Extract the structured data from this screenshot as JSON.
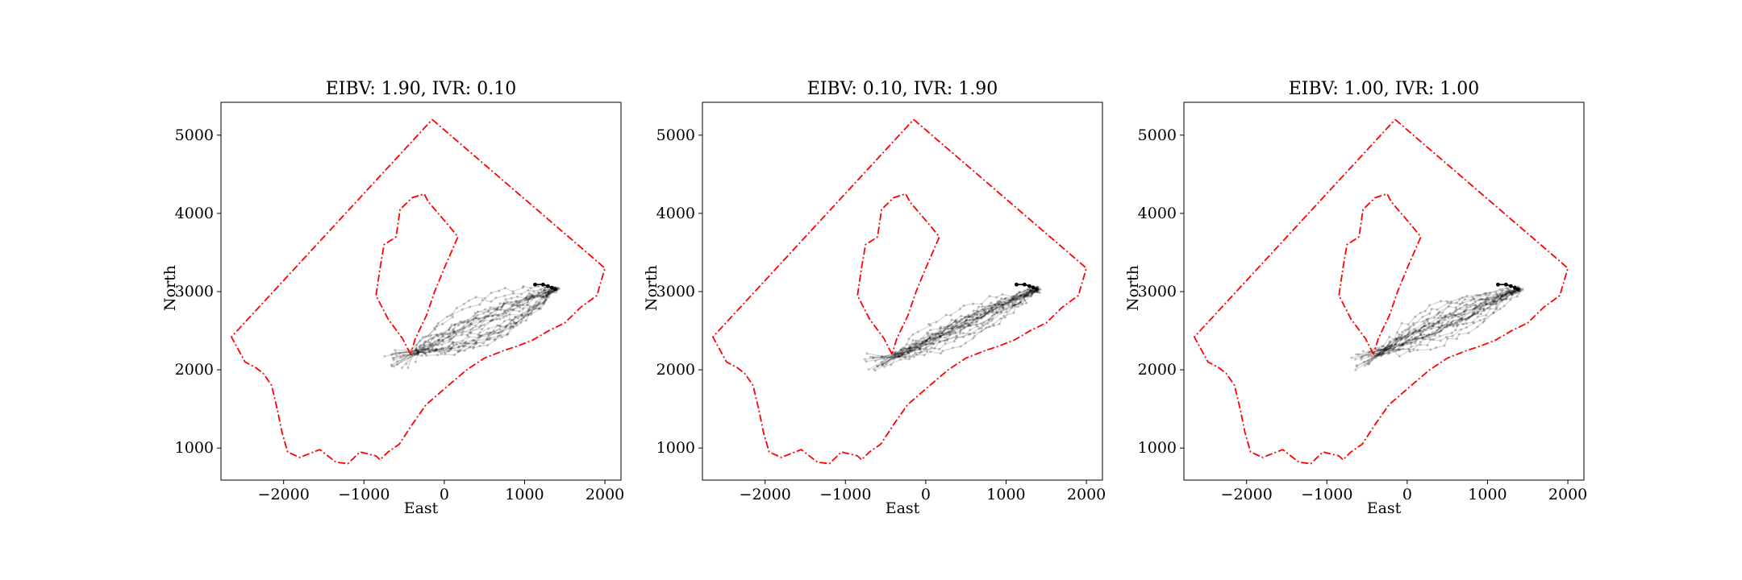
{
  "colors": {
    "boundary": "#ff0000",
    "path": "#000000",
    "axes": "#000000"
  },
  "chart_data": [
    {
      "type": "line",
      "title": "EIBV: 1.90, IVR: 0.10",
      "xlabel": "East",
      "ylabel": "North",
      "xlim": [
        -2780,
        2200
      ],
      "ylim": [
        590,
        5420
      ],
      "xticks": [
        -2000,
        -1000,
        0,
        1000,
        2000
      ],
      "yticks": [
        1000,
        2000,
        3000,
        4000,
        5000
      ],
      "xtick_labels": [
        "−2000",
        "−1000",
        "0",
        "1000",
        "2000"
      ],
      "ytick_labels": [
        "1000",
        "2000",
        "3000",
        "4000",
        "5000"
      ],
      "series": [
        {
          "style": "red dash-dot",
          "x": [
            -150,
            2000,
            1900,
            1700,
            1500,
            1300,
            1100,
            900,
            750,
            500,
            280,
            50,
            -230,
            -400,
            -560,
            -700,
            -800,
            -850,
            -1050,
            -1200,
            -1350,
            -1550,
            -1800,
            -1950,
            -2020,
            -2080,
            -2150,
            -2250,
            -2350,
            -2480,
            -2650,
            -150
          ],
          "y": [
            5200,
            3300,
            2950,
            2800,
            2600,
            2500,
            2380,
            2300,
            2250,
            2150,
            2000,
            1800,
            1550,
            1300,
            1050,
            950,
            850,
            900,
            950,
            800,
            820,
            980,
            880,
            950,
            1200,
            1500,
            1800,
            1950,
            2030,
            2100,
            2420,
            5200
          ]
        },
        {
          "style": "red dash-dot",
          "x": [
            -420,
            -520,
            -700,
            -850,
            -800,
            -750,
            -600,
            -550,
            -400,
            -250,
            -200,
            50,
            170,
            0,
            -120,
            -220,
            -360,
            -420
          ],
          "y": [
            2200,
            2400,
            2650,
            2950,
            3300,
            3600,
            3700,
            4050,
            4200,
            4250,
            4150,
            3850,
            3700,
            3300,
            3000,
            2700,
            2400,
            2200
          ]
        },
        {
          "style": "black mean path",
          "x": [
            1130,
            1230,
            1290,
            1340,
            1380
          ],
          "y": [
            3090,
            3090,
            3070,
            3050,
            3030
          ]
        }
      ],
      "sample_paths": {
        "count": 22,
        "start": [
          -420,
          2200
        ],
        "end": [
          1380,
          3030
        ],
        "style": "gray translucent"
      }
    },
    {
      "type": "line",
      "title": "EIBV: 0.10, IVR: 1.90",
      "xlabel": "East",
      "ylabel": "North",
      "xlim": [
        -2780,
        2200
      ],
      "ylim": [
        590,
        5420
      ],
      "xticks": [
        -2000,
        -1000,
        0,
        1000,
        2000
      ],
      "yticks": [
        1000,
        2000,
        3000,
        4000,
        5000
      ],
      "xtick_labels": [
        "−2000",
        "−1000",
        "0",
        "1000",
        "2000"
      ],
      "ytick_labels": [
        "1000",
        "2000",
        "3000",
        "4000",
        "5000"
      ],
      "series": [
        {
          "style": "red dash-dot",
          "x": [
            -150,
            2000,
            1900,
            1700,
            1500,
            1300,
            1100,
            900,
            750,
            500,
            280,
            50,
            -230,
            -400,
            -560,
            -700,
            -800,
            -850,
            -1050,
            -1200,
            -1350,
            -1550,
            -1800,
            -1950,
            -2020,
            -2080,
            -2150,
            -2250,
            -2350,
            -2480,
            -2650,
            -150
          ],
          "y": [
            5200,
            3300,
            2950,
            2800,
            2600,
            2500,
            2380,
            2300,
            2250,
            2150,
            2000,
            1800,
            1550,
            1300,
            1050,
            950,
            850,
            900,
            950,
            800,
            820,
            980,
            880,
            950,
            1200,
            1500,
            1800,
            1950,
            2030,
            2100,
            2420,
            5200
          ]
        },
        {
          "style": "red dash-dot",
          "x": [
            -420,
            -520,
            -700,
            -850,
            -800,
            -750,
            -600,
            -550,
            -400,
            -250,
            -200,
            50,
            170,
            0,
            -120,
            -220,
            -360,
            -420
          ],
          "y": [
            2200,
            2400,
            2650,
            2950,
            3300,
            3600,
            3700,
            4050,
            4200,
            4250,
            4150,
            3850,
            3700,
            3300,
            3000,
            2700,
            2400,
            2200
          ]
        },
        {
          "style": "black mean path",
          "x": [
            1130,
            1230,
            1290,
            1340,
            1380
          ],
          "y": [
            3090,
            3090,
            3070,
            3050,
            3030
          ]
        }
      ],
      "sample_paths": {
        "count": 22,
        "start": [
          -420,
          2150
        ],
        "end": [
          1380,
          3030
        ],
        "style": "gray translucent"
      }
    },
    {
      "type": "line",
      "title": "EIBV: 1.00, IVR: 1.00",
      "xlabel": "East",
      "ylabel": "North",
      "xlim": [
        -2780,
        2200
      ],
      "ylim": [
        590,
        5420
      ],
      "xticks": [
        -2000,
        -1000,
        0,
        1000,
        2000
      ],
      "yticks": [
        1000,
        2000,
        3000,
        4000,
        5000
      ],
      "xtick_labels": [
        "−2000",
        "−1000",
        "0",
        "1000",
        "2000"
      ],
      "ytick_labels": [
        "1000",
        "2000",
        "3000",
        "4000",
        "5000"
      ],
      "series": [
        {
          "style": "red dash-dot",
          "x": [
            -150,
            2000,
            1900,
            1700,
            1500,
            1300,
            1100,
            900,
            750,
            500,
            280,
            50,
            -230,
            -400,
            -560,
            -700,
            -800,
            -850,
            -1050,
            -1200,
            -1350,
            -1550,
            -1800,
            -1950,
            -2020,
            -2080,
            -2150,
            -2250,
            -2350,
            -2480,
            -2650,
            -150
          ],
          "y": [
            5200,
            3300,
            2950,
            2800,
            2600,
            2500,
            2380,
            2300,
            2250,
            2150,
            2000,
            1800,
            1550,
            1300,
            1050,
            950,
            850,
            900,
            950,
            800,
            820,
            980,
            880,
            950,
            1200,
            1500,
            1800,
            1950,
            2030,
            2100,
            2420,
            5200
          ]
        },
        {
          "style": "red dash-dot",
          "x": [
            -420,
            -520,
            -700,
            -850,
            -800,
            -750,
            -600,
            -550,
            -400,
            -250,
            -200,
            50,
            170,
            0,
            -120,
            -220,
            -360,
            -420
          ],
          "y": [
            2200,
            2400,
            2650,
            2950,
            3300,
            3600,
            3700,
            4050,
            4200,
            4250,
            4150,
            3850,
            3700,
            3300,
            3000,
            2700,
            2400,
            2200
          ]
        },
        {
          "style": "black mean path",
          "x": [
            1130,
            1230,
            1290,
            1340,
            1380
          ],
          "y": [
            3090,
            3090,
            3070,
            3050,
            3030
          ]
        }
      ],
      "sample_paths": {
        "count": 22,
        "start": [
          -420,
          2180
        ],
        "end": [
          1380,
          3030
        ],
        "style": "gray translucent"
      }
    }
  ]
}
